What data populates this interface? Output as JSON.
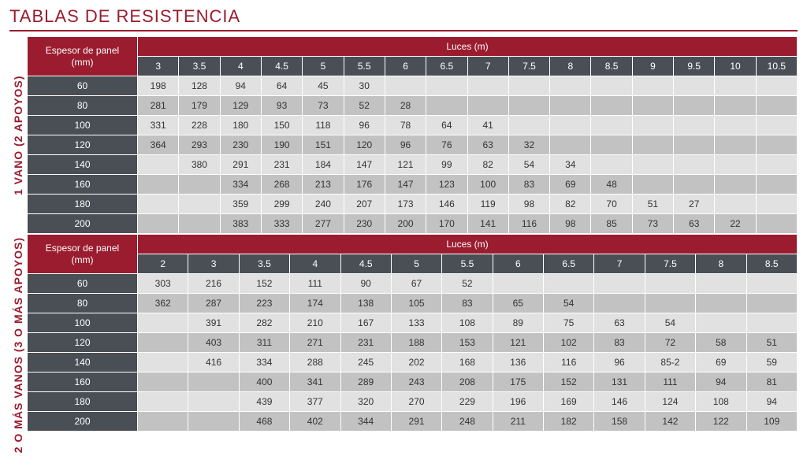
{
  "colors": {
    "brand": "#9a1c2e",
    "darkSlate": "#4a4f56",
    "rowAlt1": "#e1e1e1",
    "rowAlt2": "#c2c2c2",
    "title": "#9a1c2e",
    "sideLabel": "#9a1c2e"
  },
  "title": "TABLAS DE RESISTENCIA",
  "sections": [
    {
      "sideLabel": "1 VANO (2 APOYOS)",
      "rowHeaderLine1": "Espesor de panel",
      "rowHeaderLine2": "(mm)",
      "colSuperHeader": "Luces (m)",
      "spans": [
        "3",
        "3.5",
        "4",
        "4.5",
        "5",
        "5.5",
        "6",
        "6.5",
        "7",
        "7.5",
        "8",
        "8.5",
        "9",
        "9.5",
        "10",
        "10.5"
      ],
      "rows": [
        {
          "t": "60",
          "v": [
            "198",
            "128",
            "94",
            "64",
            "45",
            "30",
            "",
            "",
            "",
            "",
            "",
            "",
            "",
            "",
            "",
            ""
          ]
        },
        {
          "t": "80",
          "v": [
            "281",
            "179",
            "129",
            "93",
            "73",
            "52",
            "28",
            "",
            "",
            "",
            "",
            "",
            "",
            "",
            "",
            ""
          ]
        },
        {
          "t": "100",
          "v": [
            "331",
            "228",
            "180",
            "150",
            "118",
            "96",
            "78",
            "64",
            "41",
            "",
            "",
            "",
            "",
            "",
            "",
            ""
          ]
        },
        {
          "t": "120",
          "v": [
            "364",
            "293",
            "230",
            "190",
            "151",
            "120",
            "96",
            "76",
            "63",
            "32",
            "",
            "",
            "",
            "",
            "",
            ""
          ]
        },
        {
          "t": "140",
          "v": [
            "",
            "380",
            "291",
            "231",
            "184",
            "147",
            "121",
            "99",
            "82",
            "54",
            "34",
            "",
            "",
            "",
            "",
            ""
          ]
        },
        {
          "t": "160",
          "v": [
            "",
            "",
            "334",
            "268",
            "213",
            "176",
            "147",
            "123",
            "100",
            "83",
            "69",
            "48",
            "",
            "",
            "",
            ""
          ]
        },
        {
          "t": "180",
          "v": [
            "",
            "",
            "359",
            "299",
            "240",
            "207",
            "173",
            "146",
            "119",
            "98",
            "82",
            "70",
            "51",
            "27",
            "",
            ""
          ]
        },
        {
          "t": "200",
          "v": [
            "",
            "",
            "383",
            "333",
            "277",
            "230",
            "200",
            "170",
            "141",
            "116",
            "98",
            "85",
            "73",
            "63",
            "22",
            ""
          ]
        }
      ]
    },
    {
      "sideLabel": "2 O MÁS VANOS (3 O MÁS APOYOS)",
      "rowHeaderLine1": "Espesor de panel",
      "rowHeaderLine2": "(mm)",
      "colSuperHeader": "Luces (m)",
      "spans": [
        "2",
        "3",
        "3.5",
        "4",
        "4.5",
        "5",
        "5.5",
        "6",
        "6.5",
        "7",
        "7.5",
        "8",
        "8.5"
      ],
      "rows": [
        {
          "t": "60",
          "v": [
            "303",
            "216",
            "152",
            "111",
            "90",
            "67",
            "52",
            "",
            "",
            "",
            "",
            "",
            ""
          ]
        },
        {
          "t": "80",
          "v": [
            "362",
            "287",
            "223",
            "174",
            "138",
            "105",
            "83",
            "65",
            "54",
            "",
            "",
            "",
            ""
          ]
        },
        {
          "t": "100",
          "v": [
            "",
            "391",
            "282",
            "210",
            "167",
            "133",
            "108",
            "89",
            "75",
            "63",
            "54",
            "",
            ""
          ]
        },
        {
          "t": "120",
          "v": [
            "",
            "403",
            "311",
            "271",
            "231",
            "188",
            "153",
            "121",
            "102",
            "83",
            "72",
            "58",
            "51"
          ]
        },
        {
          "t": "140",
          "v": [
            "",
            "416",
            "334",
            "288",
            "245",
            "202",
            "168",
            "136",
            "116",
            "96",
            "85-2",
            "69",
            "59"
          ]
        },
        {
          "t": "160",
          "v": [
            "",
            "",
            "400",
            "341",
            "289",
            "243",
            "208",
            "175",
            "152",
            "131",
            "111",
            "94",
            "81"
          ]
        },
        {
          "t": "180",
          "v": [
            "",
            "",
            "439",
            "377",
            "320",
            "270",
            "229",
            "196",
            "169",
            "146",
            "124",
            "108",
            "94"
          ]
        },
        {
          "t": "200",
          "v": [
            "",
            "",
            "468",
            "402",
            "344",
            "291",
            "248",
            "211",
            "182",
            "158",
            "142",
            "122",
            "109"
          ]
        }
      ]
    }
  ]
}
